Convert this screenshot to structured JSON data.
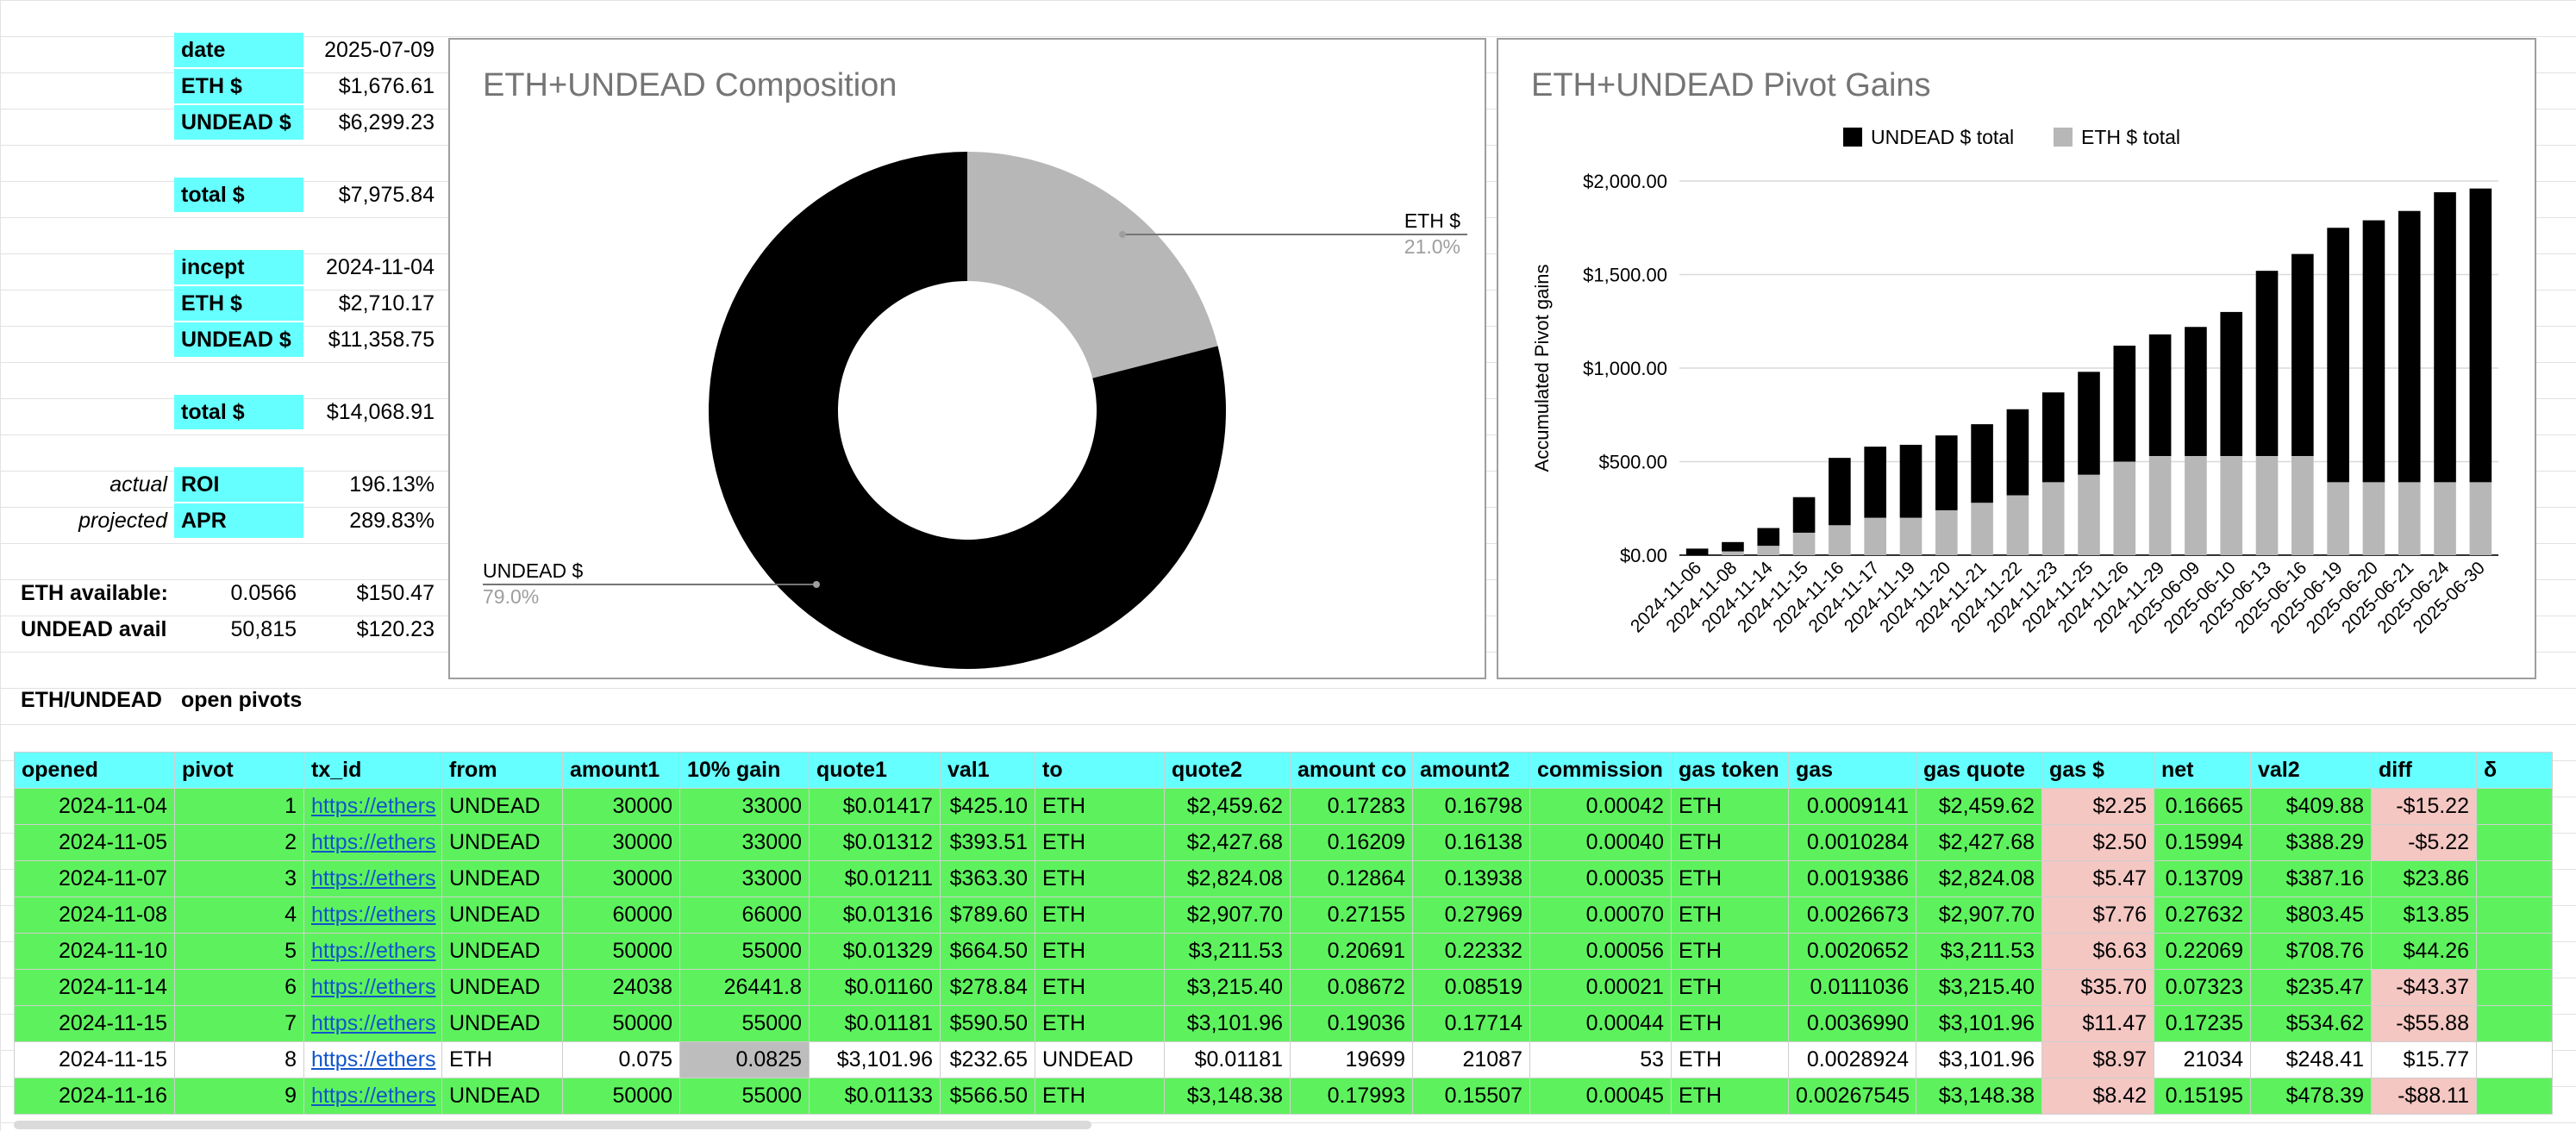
{
  "summary": {
    "date_label": "date",
    "date_value": "2025-07-09",
    "eth_label": "ETH $",
    "eth_value": "$1,676.61",
    "undead_label": "UNDEAD $",
    "undead_value": "$6,299.23",
    "total_label": "total $",
    "total_value": "$7,975.84",
    "incept_label": "incept",
    "incept_value": "2024-11-04",
    "incept_eth_label": "ETH $",
    "incept_eth_value": "$2,710.17",
    "incept_undead_label": "UNDEAD $",
    "incept_undead_value": "$11,358.75",
    "incept_total_label": "total $",
    "incept_total_value": "$14,068.91",
    "actual_label": "actual",
    "roi_label": "ROI",
    "roi_value": "196.13%",
    "projected_label": "projected",
    "apr_label": "APR",
    "apr_value": "289.83%",
    "eth_available_label": "ETH available:",
    "eth_available_amount": "0.0566",
    "eth_available_usd": "$150.47",
    "undead_available_label": "UNDEAD avail",
    "undead_available_amount": "50,815",
    "undead_available_usd": "$120.23",
    "pivots_label_1": "ETH/UNDEAD",
    "pivots_label_2": "open pivots"
  },
  "chart_data": [
    {
      "type": "pie",
      "title": "ETH+UNDEAD Composition",
      "donut": true,
      "slices": [
        {
          "label": "ETH $",
          "percent_label": "21.0%",
          "value": 21.0,
          "color": "#b7b7b7"
        },
        {
          "label": "UNDEAD $",
          "percent_label": "79.0%",
          "value": 79.0,
          "color": "#000000"
        }
      ]
    },
    {
      "type": "bar",
      "stacked": true,
      "title": "ETH+UNDEAD Pivot Gains",
      "ylabel": "Accumulated Pivot gains",
      "ylim": [
        0,
        2000
      ],
      "yticks": [
        "$0.00",
        "$500.00",
        "$1,000.00",
        "$1,500.00",
        "$2,000.00"
      ],
      "ytick_values": [
        0,
        500,
        1000,
        1500,
        2000
      ],
      "legend_position": "top",
      "categories": [
        "2024-11-06",
        "2024-11-08",
        "2024-11-14",
        "2024-11-15",
        "2024-11-16",
        "2024-11-17",
        "2024-11-19",
        "2024-11-20",
        "2024-11-21",
        "2024-11-22",
        "2024-11-23",
        "2024-11-25",
        "2024-11-26",
        "2024-11-29",
        "2025-06-09",
        "2025-06-10",
        "2025-06-13",
        "2025-06-16",
        "2025-06-19",
        "2025-06-20",
        "2025-06-21",
        "2025-06-24",
        "2025-06-30"
      ],
      "series": [
        {
          "name": "ETH $ total",
          "color": "#b7b7b7",
          "values": [
            0,
            20,
            50,
            120,
            160,
            200,
            200,
            240,
            280,
            320,
            390,
            430,
            500,
            530,
            530,
            530,
            530,
            530,
            390,
            390,
            390,
            390,
            390
          ]
        },
        {
          "name": "UNDEAD $ total",
          "color": "#000000",
          "values": [
            35,
            50,
            95,
            190,
            360,
            380,
            390,
            400,
            420,
            460,
            480,
            550,
            620,
            650,
            690,
            770,
            990,
            1080,
            1360,
            1400,
            1450,
            1550,
            1570
          ]
        }
      ]
    }
  ],
  "table": {
    "headers": [
      "opened",
      "pivot",
      "tx_id",
      "from",
      "amount1",
      "10% gain",
      "quote1",
      "val1",
      "to",
      "quote2",
      "amount co",
      "amount2",
      "commission",
      "gas token",
      "gas",
      "gas quote",
      "gas $",
      "net",
      "val2",
      "diff",
      "δ"
    ],
    "rows": [
      [
        "2024-11-04",
        "1",
        "https://ethers",
        "UNDEAD",
        "30000",
        "33000",
        "$0.01417",
        "$425.10",
        "ETH",
        "$2,459.62",
        "0.17283",
        "0.16798",
        "0.00042",
        "ETH",
        "0.0009141",
        "$2,459.62",
        "$2.25",
        "0.16665",
        "$409.88",
        "-$15.22",
        ""
      ],
      [
        "2024-11-05",
        "2",
        "https://ethers",
        "UNDEAD",
        "30000",
        "33000",
        "$0.01312",
        "$393.51",
        "ETH",
        "$2,427.68",
        "0.16209",
        "0.16138",
        "0.00040",
        "ETH",
        "0.0010284",
        "$2,427.68",
        "$2.50",
        "0.15994",
        "$388.29",
        "-$5.22",
        ""
      ],
      [
        "2024-11-07",
        "3",
        "https://ethers",
        "UNDEAD",
        "30000",
        "33000",
        "$0.01211",
        "$363.30",
        "ETH",
        "$2,824.08",
        "0.12864",
        "0.13938",
        "0.00035",
        "ETH",
        "0.0019386",
        "$2,824.08",
        "$5.47",
        "0.13709",
        "$387.16",
        "$23.86",
        ""
      ],
      [
        "2024-11-08",
        "4",
        "https://ethers",
        "UNDEAD",
        "60000",
        "66000",
        "$0.01316",
        "$789.60",
        "ETH",
        "$2,907.70",
        "0.27155",
        "0.27969",
        "0.00070",
        "ETH",
        "0.0026673",
        "$2,907.70",
        "$7.76",
        "0.27632",
        "$803.45",
        "$13.85",
        ""
      ],
      [
        "2024-11-10",
        "5",
        "https://ethers",
        "UNDEAD",
        "50000",
        "55000",
        "$0.01329",
        "$664.50",
        "ETH",
        "$3,211.53",
        "0.20691",
        "0.22332",
        "0.00056",
        "ETH",
        "0.0020652",
        "$3,211.53",
        "$6.63",
        "0.22069",
        "$708.76",
        "$44.26",
        ""
      ],
      [
        "2024-11-14",
        "6",
        "https://ethers",
        "UNDEAD",
        "24038",
        "26441.8",
        "$0.01160",
        "$278.84",
        "ETH",
        "$3,215.40",
        "0.08672",
        "0.08519",
        "0.00021",
        "ETH",
        "0.0111036",
        "$3,215.40",
        "$35.70",
        "0.07323",
        "$235.47",
        "-$43.37",
        ""
      ],
      [
        "2024-11-15",
        "7",
        "https://ethers",
        "UNDEAD",
        "50000",
        "55000",
        "$0.01181",
        "$590.50",
        "ETH",
        "$3,101.96",
        "0.19036",
        "0.17714",
        "0.00044",
        "ETH",
        "0.0036990",
        "$3,101.96",
        "$11.47",
        "0.17235",
        "$534.62",
        "-$55.88",
        ""
      ],
      [
        "2024-11-15",
        "8",
        "https://ethers",
        "ETH",
        "0.075",
        "0.0825",
        "$3,101.96",
        "$232.65",
        "UNDEAD",
        "$0.01181",
        "19699",
        "21087",
        "53",
        "ETH",
        "0.0028924",
        "$3,101.96",
        "$8.97",
        "21034",
        "$248.41",
        "$15.77",
        ""
      ],
      [
        "2024-11-16",
        "9",
        "https://ethers",
        "UNDEAD",
        "50000",
        "55000",
        "$0.01133",
        "$566.50",
        "ETH",
        "$3,148.38",
        "0.17993",
        "0.15507",
        "0.00045",
        "ETH",
        "0.00267545",
        "$3,148.38",
        "$8.42",
        "0.15195",
        "$478.39",
        "-$88.11",
        ""
      ]
    ]
  }
}
